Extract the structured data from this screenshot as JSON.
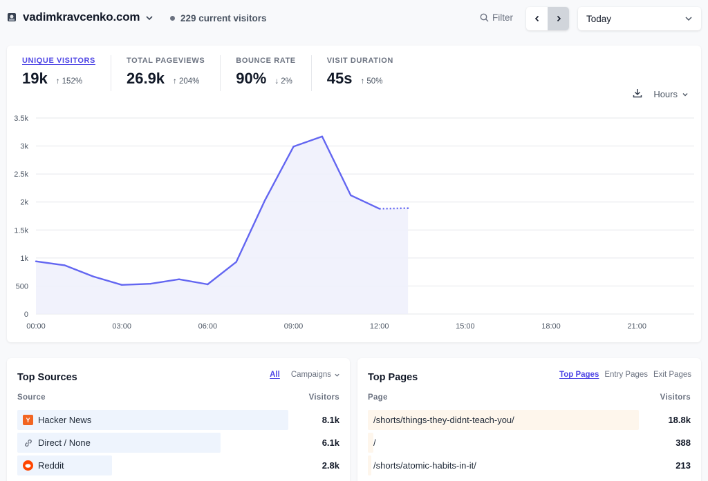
{
  "site": {
    "name": "vadimkravcenko.com",
    "visitors_text": "229 current visitors"
  },
  "toolbar": {
    "filter_label": "Filter",
    "date_range": "Today"
  },
  "metrics": [
    {
      "label": "UNIQUE VISITORS",
      "value": "19k",
      "change": "↑ 152%",
      "active": true
    },
    {
      "label": "TOTAL PAGEVIEWS",
      "value": "26.9k",
      "change": "↑ 204%"
    },
    {
      "label": "BOUNCE RATE",
      "value": "90%",
      "change": "↓ 2%"
    },
    {
      "label": "VISIT DURATION",
      "value": "45s",
      "change": "↑ 50%"
    }
  ],
  "chart_tools": {
    "interval": "Hours"
  },
  "chart_data": {
    "type": "area",
    "x": [
      "00:00",
      "01:00",
      "02:00",
      "03:00",
      "04:00",
      "05:00",
      "06:00",
      "07:00",
      "08:00",
      "09:00",
      "10:00",
      "11:00",
      "12:00",
      "13:00"
    ],
    "values": [
      940,
      870,
      670,
      520,
      540,
      620,
      530,
      930,
      2030,
      2990,
      3170,
      2120,
      1880,
      1890
    ],
    "dashed_from_index": 12,
    "x_ticks": [
      "00:00",
      "03:00",
      "06:00",
      "09:00",
      "12:00",
      "15:00",
      "18:00",
      "21:00"
    ],
    "x_tick_positions": [
      0,
      3,
      6,
      9,
      12,
      15,
      18,
      21
    ],
    "x_max": 23,
    "y_ticks": [
      0,
      500,
      1000,
      1500,
      2000,
      2500,
      3000,
      3500
    ],
    "y_tick_labels": [
      "0",
      "500",
      "1k",
      "1.5k",
      "2k",
      "2.5k",
      "3k",
      "3.5k"
    ],
    "ylim": [
      0,
      3500
    ],
    "grid": true,
    "color": "#6366f1",
    "fill_color": "#eef0fb"
  },
  "sources": {
    "title": "Top Sources",
    "tabs": {
      "all": "All",
      "campaigns": "Campaigns"
    },
    "col_source": "Source",
    "col_visitors": "Visitors",
    "bar_color": "#eef4fd",
    "items": [
      {
        "label": "Hacker News",
        "value": "8.1k",
        "fraction": 1.0,
        "icon": "hacker-news-icon"
      },
      {
        "label": "Direct / None",
        "value": "6.1k",
        "fraction": 0.75,
        "icon": "link-icon"
      },
      {
        "label": "Reddit",
        "value": "2.8k",
        "fraction": 0.35,
        "icon": "reddit-icon"
      }
    ]
  },
  "pages": {
    "title": "Top Pages",
    "tabs": {
      "top": "Top Pages",
      "entry": "Entry Pages",
      "exit": "Exit Pages"
    },
    "col_page": "Page",
    "col_visitors": "Visitors",
    "bar_color": "#fef6ec",
    "items": [
      {
        "label": "/shorts/things-they-didnt-teach-you/",
        "value": "18.8k",
        "fraction": 1.0
      },
      {
        "label": "/",
        "value": "388",
        "fraction": 0.02
      },
      {
        "label": "/shorts/atomic-habits-in-it/",
        "value": "213",
        "fraction": 0.012
      }
    ]
  }
}
